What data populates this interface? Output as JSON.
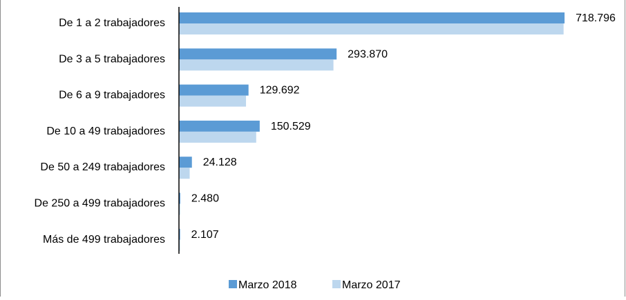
{
  "chart_data": {
    "type": "bar",
    "orientation": "horizontal",
    "categories": [
      "De 1 a 2 trabajadores",
      "De 3 a 5 trabajadores",
      "De 6 a 9 trabajadores",
      "De 10 a 49 trabajadores",
      "De  50 a 249 trabajadores",
      "De 250 a 499 trabajadores",
      "Más de 499 trabajadores"
    ],
    "series": [
      {
        "name": "Marzo 2018",
        "color": "#5b9bd5",
        "values": [
          718796,
          293870,
          129692,
          150529,
          24128,
          2480,
          2107
        ],
        "labels": [
          "718.796",
          "293.870",
          "129.692",
          "150.529",
          "24.128",
          "2.480",
          "2.107"
        ]
      },
      {
        "name": "Marzo 2017",
        "color": "#bdd7ee",
        "values": [
          717000,
          288000,
          125000,
          144000,
          20000,
          2300,
          2000
        ]
      }
    ],
    "xlim": [
      0,
      720000
    ],
    "grid": false,
    "legend_position": "bottom"
  }
}
